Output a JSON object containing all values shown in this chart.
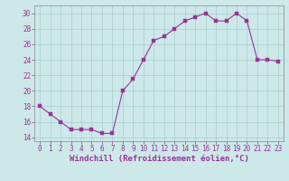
{
  "x": [
    0,
    1,
    2,
    3,
    4,
    5,
    6,
    7,
    8,
    9,
    10,
    11,
    12,
    13,
    14,
    15,
    16,
    17,
    18,
    19,
    20,
    21,
    22,
    23
  ],
  "y": [
    18,
    17,
    16,
    15,
    15,
    15,
    14.5,
    14.5,
    20,
    21.5,
    24,
    26.5,
    27,
    28,
    29,
    29.5,
    30,
    29,
    29,
    30,
    29,
    24,
    24,
    23.8
  ],
  "line_color": "#993399",
  "marker": "s",
  "marker_size": 2.2,
  "bg_color": "#cce8e8",
  "grid_color": "#aacccc",
  "xlabel": "Windchill (Refroidissement éolien,°C)",
  "xlim": [
    -0.5,
    23.5
  ],
  "ylim": [
    13.5,
    31
  ],
  "yticks": [
    14,
    16,
    18,
    20,
    22,
    24,
    26,
    28,
    30
  ],
  "xticks": [
    0,
    1,
    2,
    3,
    4,
    5,
    6,
    7,
    8,
    9,
    10,
    11,
    12,
    13,
    14,
    15,
    16,
    17,
    18,
    19,
    20,
    21,
    22,
    23
  ],
  "tick_label_color": "#993399",
  "tick_fontsize": 5.5,
  "xlabel_fontsize": 6.5
}
